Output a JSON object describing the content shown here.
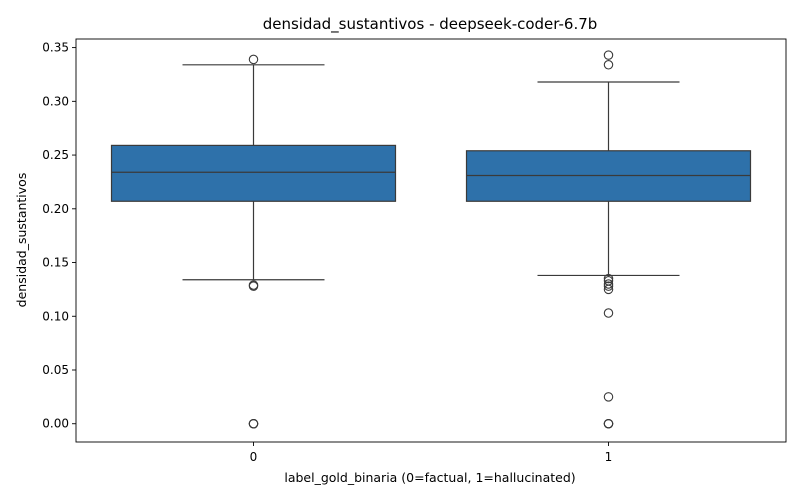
{
  "chart_data": {
    "type": "box",
    "title": "densidad_sustantivos - deepseek-coder-6.7b",
    "xlabel": "label_gold_binaria (0=factual, 1=hallucinated)",
    "ylabel": "densidad_sustantivos",
    "categories": [
      "0",
      "1"
    ],
    "ylim": [
      -0.017,
      0.358
    ],
    "yticks": [
      0.0,
      0.05,
      0.1,
      0.15,
      0.2,
      0.25,
      0.3,
      0.35
    ],
    "ytick_labels": [
      "0.00",
      "0.05",
      "0.10",
      "0.15",
      "0.20",
      "0.25",
      "0.30",
      "0.35"
    ],
    "grid": false,
    "box_color": "#2e71aa",
    "edge_color": "#3a3a3a",
    "boxes": [
      {
        "category": "0",
        "whisker_low": 0.134,
        "q1": 0.207,
        "median": 0.234,
        "q3": 0.259,
        "whisker_high": 0.334,
        "outliers": [
          0.339,
          0.129,
          0.128,
          0.0,
          0.0,
          0.0
        ]
      },
      {
        "category": "1",
        "whisker_low": 0.138,
        "q1": 0.207,
        "median": 0.231,
        "q3": 0.254,
        "whisker_high": 0.318,
        "outliers": [
          0.343,
          0.334,
          0.135,
          0.133,
          0.13,
          0.128,
          0.125,
          0.103,
          0.025,
          0.0,
          0.0,
          0.0
        ]
      }
    ]
  }
}
